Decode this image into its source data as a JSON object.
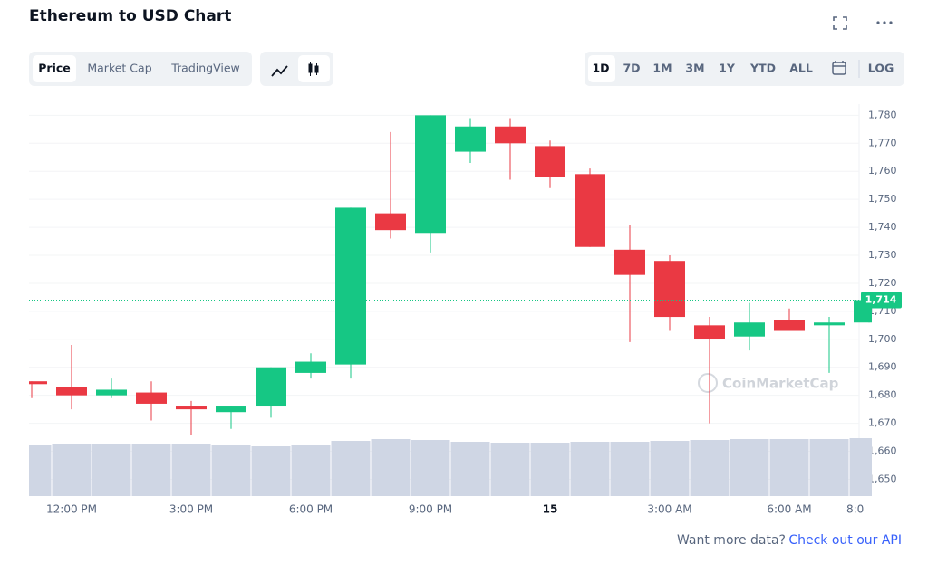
{
  "chart_data": {
    "type": "candlestick",
    "title": "Ethereum to USD Chart",
    "categories": [
      null,
      "12:00 PM",
      null,
      null,
      "3:00 PM",
      null,
      null,
      "6:00 PM",
      null,
      null,
      "9:00 PM",
      null,
      null,
      "15",
      null,
      null,
      "3:00 AM",
      null,
      null,
      "6:00 AM",
      null,
      "8:0"
    ],
    "open": [
      1685,
      1683,
      1680,
      1681,
      1676,
      1674,
      1676,
      1688,
      1691,
      1745,
      1738,
      1767,
      1776,
      1769,
      1759,
      1732,
      1728,
      1705,
      1701,
      1707,
      1705,
      1706
    ],
    "high": [
      1685,
      1698,
      1686,
      1685,
      1678,
      1676,
      1690,
      1695,
      1747,
      1774,
      1780,
      1779,
      1779,
      1771,
      1761,
      1741,
      1730,
      1708,
      1713,
      1711,
      1708,
      1714
    ],
    "low": [
      1679,
      1675,
      1679,
      1671,
      1666,
      1668,
      1672,
      1686,
      1686,
      1736,
      1731,
      1763,
      1757,
      1754,
      1733,
      1699,
      1703,
      1670,
      1696,
      1703,
      1688,
      1706
    ],
    "close": [
      1684,
      1680,
      1682,
      1677,
      1675,
      1676,
      1690,
      1692,
      1747,
      1739,
      1780,
      1776,
      1770,
      1758,
      1733,
      1723,
      1708,
      1700,
      1706,
      1703,
      1706,
      1714
    ],
    "volume": [
      57,
      58,
      58,
      58,
      58,
      56,
      55,
      56,
      61,
      63,
      62,
      60,
      59,
      59,
      60,
      60,
      61,
      62,
      63,
      63,
      63,
      64
    ],
    "up_color": "#16c784",
    "down_color": "#ea3943",
    "volume_color": "#cfd6e4",
    "ylim": [
      1644,
      1784
    ],
    "yticks": [
      {
        "value": 1650,
        "label": "1,650"
      },
      {
        "value": 1660,
        "label": "1,660"
      },
      {
        "value": 1670,
        "label": "1,670"
      },
      {
        "value": 1680,
        "label": "1,680"
      },
      {
        "value": 1690,
        "label": "1,690"
      },
      {
        "value": 1700,
        "label": "1,700"
      },
      {
        "value": 1710,
        "label": "1,710"
      },
      {
        "value": 1720,
        "label": "1,720"
      },
      {
        "value": 1730,
        "label": "1,730"
      },
      {
        "value": 1740,
        "label": "1,740"
      },
      {
        "value": 1750,
        "label": "1,750"
      },
      {
        "value": 1760,
        "label": "1,760"
      },
      {
        "value": 1770,
        "label": "1,770"
      },
      {
        "value": 1780,
        "label": "1,780"
      }
    ],
    "last_price": {
      "value": 1714,
      "label": "1,714"
    },
    "grid": true,
    "watermark": "CoinMarketCap"
  },
  "controls": {
    "tabs": [
      "Price",
      "Market Cap",
      "TradingView"
    ],
    "ranges": [
      "1D",
      "7D",
      "1M",
      "3M",
      "1Y",
      "YTD",
      "ALL"
    ],
    "log": "LOG"
  },
  "footer": {
    "question": "Want more data?",
    "link": "Check out our API"
  }
}
